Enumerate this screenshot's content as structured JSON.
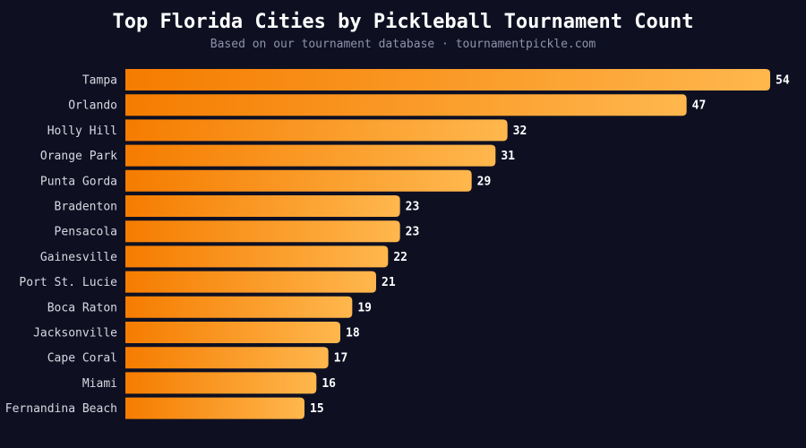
{
  "title": "Top Florida Cities by Pickleball Tournament Count",
  "subtitle": "Based on our tournament database · tournamentpickle.com",
  "colors": {
    "background": "#0e1022",
    "bar_start": "#f57c00",
    "bar_end": "#ffb74d",
    "label": "#d6d8e0",
    "value": "#ffffff"
  },
  "chart_data": {
    "type": "bar",
    "orientation": "horizontal",
    "title": "Top Florida Cities by Pickleball Tournament Count",
    "subtitle": "Based on our tournament database · tournamentpickle.com",
    "categories": [
      "Tampa",
      "Orlando",
      "Holly Hill",
      "Orange Park",
      "Punta Gorda",
      "Bradenton",
      "Pensacola",
      "Gainesville",
      "Port St. Lucie",
      "Boca Raton",
      "Jacksonville",
      "Cape Coral",
      "Miami",
      "Fernandina Beach"
    ],
    "values": [
      54,
      47,
      32,
      31,
      29,
      23,
      23,
      22,
      21,
      19,
      18,
      17,
      16,
      15
    ],
    "xlim": [
      0,
      54
    ],
    "grid": false,
    "data_labels": true
  }
}
